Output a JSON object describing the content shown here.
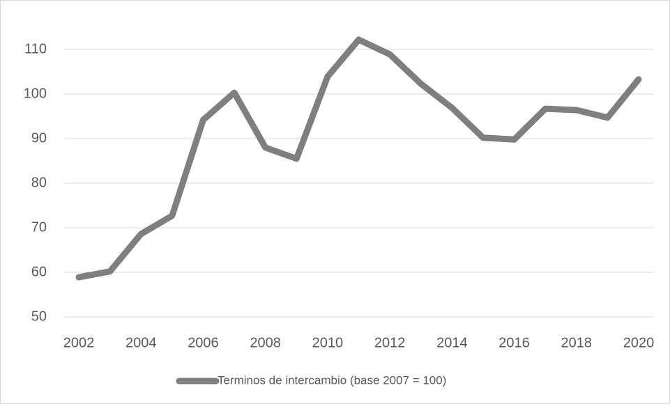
{
  "chart_data": {
    "type": "line",
    "x": [
      2002,
      2003,
      2004,
      2005,
      2006,
      2007,
      2008,
      2009,
      2010,
      2011,
      2012,
      2013,
      2014,
      2015,
      2016,
      2017,
      2018,
      2019,
      2020
    ],
    "series": [
      {
        "name": "Terminos de intercambio (base 2007 = 100)",
        "color": "#7f7f7f",
        "values": [
          58.9,
          60.2,
          68.6,
          72.7,
          94.2,
          100.3,
          88.0,
          85.5,
          103.9,
          112.2,
          108.9,
          102.3,
          96.9,
          90.2,
          89.8,
          96.7,
          96.4,
          94.7,
          103.3
        ]
      }
    ],
    "xlim": [
      2002,
      2020
    ],
    "xticks": [
      2002,
      2004,
      2006,
      2008,
      2010,
      2012,
      2014,
      2016,
      2018,
      2020
    ],
    "ylim": [
      50,
      110
    ],
    "yticks": [
      50,
      60,
      70,
      80,
      90,
      100,
      110
    ],
    "grid": true,
    "legend": "bottom"
  }
}
